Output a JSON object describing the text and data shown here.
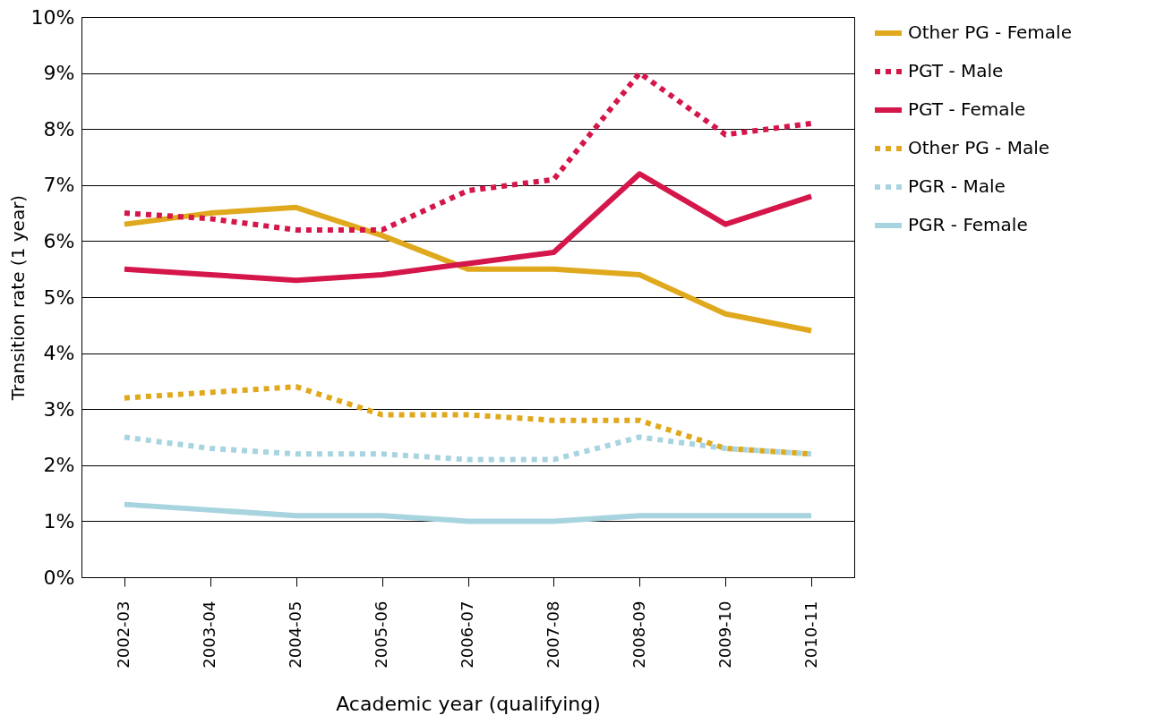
{
  "chart_data": {
    "type": "line",
    "xlabel": "Academic year (qualifying)",
    "ylabel": "Transition rate (1 year)",
    "categories": [
      "2002-03",
      "2003-04",
      "2004-05",
      "2005-06",
      "2006-07",
      "2007-08",
      "2008-09",
      "2009-10",
      "2010-11"
    ],
    "series": [
      {
        "name": "Other PG - Female",
        "color": "#e0a81c",
        "line_style": "solid",
        "values": [
          6.3,
          6.5,
          6.6,
          6.1,
          5.5,
          5.5,
          5.4,
          4.7,
          4.4
        ]
      },
      {
        "name": "PGT - Male",
        "color": "#d4164a",
        "line_style": "dotted",
        "values": [
          6.5,
          6.4,
          6.2,
          6.2,
          6.9,
          7.1,
          9.0,
          7.9,
          8.1
        ]
      },
      {
        "name": "PGT - Female",
        "color": "#d4164a",
        "line_style": "solid",
        "values": [
          5.5,
          5.4,
          5.3,
          5.4,
          5.6,
          5.8,
          7.2,
          6.3,
          6.8
        ]
      },
      {
        "name": "Other PG - Male",
        "color": "#e0a81c",
        "line_style": "dotted",
        "values": [
          3.2,
          3.3,
          3.4,
          2.9,
          2.9,
          2.8,
          2.8,
          2.3,
          2.2
        ]
      },
      {
        "name": "PGR - Male",
        "color": "#a8d4e0",
        "line_style": "dotted",
        "values": [
          2.5,
          2.3,
          2.2,
          2.2,
          2.1,
          2.1,
          2.5,
          2.3,
          2.2
        ]
      },
      {
        "name": "PGR - Female",
        "color": "#a8d4e0",
        "line_style": "solid",
        "values": [
          1.3,
          1.2,
          1.1,
          1.1,
          1.0,
          1.0,
          1.1,
          1.1,
          1.1
        ]
      }
    ],
    "ylim": [
      0,
      10
    ],
    "yticks": [
      {
        "value": 0,
        "label": "0%"
      },
      {
        "value": 1,
        "label": "1%"
      },
      {
        "value": 2,
        "label": "2%"
      },
      {
        "value": 3,
        "label": "3%"
      },
      {
        "value": 4,
        "label": "4%"
      },
      {
        "value": 5,
        "label": "5%"
      },
      {
        "value": 6,
        "label": "6%"
      },
      {
        "value": 7,
        "label": "7%"
      },
      {
        "value": 8,
        "label": "8%"
      },
      {
        "value": 9,
        "label": "9%"
      },
      {
        "value": 10,
        "label": "10%"
      }
    ],
    "grid": "y",
    "legend": "right",
    "marker": "none"
  }
}
